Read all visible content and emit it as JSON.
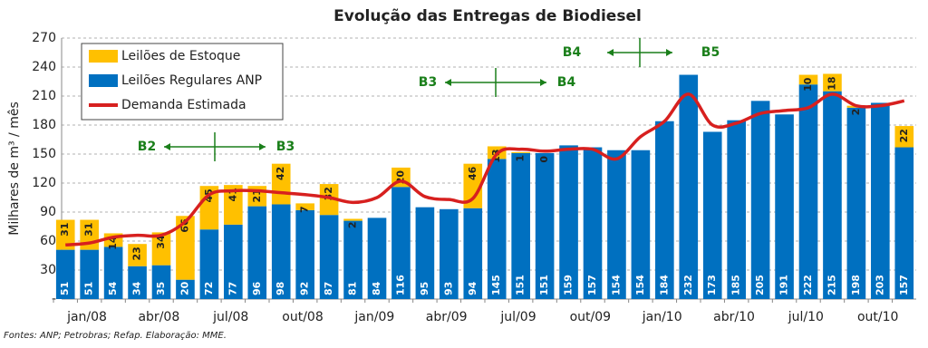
{
  "chart_data": {
    "type": "bar",
    "title": "Evolução das Entregas de Biodiesel",
    "y_label": "Milhares de m³ / mês",
    "source": "Fontes: ANP; Petrobras; Refap. Elaboração: MME.",
    "categories": [
      "jan/08",
      null,
      null,
      "abr/08",
      null,
      null,
      "jul/08",
      null,
      null,
      "out/08",
      null,
      null,
      "jan/09",
      null,
      null,
      "abr/09",
      null,
      null,
      "jul/09",
      null,
      null,
      "out/09",
      null,
      null,
      "jan/10",
      null,
      null,
      "abr/10",
      null,
      null,
      "jul/10",
      null,
      null,
      "out/10",
      null,
      null
    ],
    "series": [
      {
        "name": "Leilões de Estoque",
        "type": "bar",
        "color": "#ffc000",
        "values": [
          31,
          31,
          14,
          23,
          34,
          66,
          45,
          41,
          21,
          42,
          7,
          32,
          2,
          null,
          20,
          null,
          null,
          46,
          13,
          1,
          0,
          null,
          null,
          null,
          null,
          null,
          null,
          null,
          null,
          null,
          null,
          10,
          18,
          2,
          null,
          22
        ]
      },
      {
        "name": "Leilões Regulares ANP",
        "type": "bar",
        "color": "#0070c0",
        "values": [
          51,
          51,
          54,
          34,
          35,
          20,
          72,
          77,
          96,
          98,
          92,
          87,
          81,
          84,
          116,
          95,
          93,
          94,
          145,
          151,
          151,
          159,
          157,
          154,
          154,
          184,
          232,
          173,
          185,
          205,
          191,
          222,
          215,
          198,
          203,
          157
        ]
      },
      {
        "name": "Demanda Estimada",
        "type": "line",
        "color": "#d7201f",
        "values": [
          56,
          58,
          64,
          66,
          66,
          80,
          108,
          112,
          112,
          110,
          108,
          105,
          100,
          105,
          122,
          106,
          103,
          104,
          150,
          155,
          153,
          155,
          155,
          145,
          168,
          184,
          212,
          180,
          182,
          192,
          195,
          198,
          212,
          200,
          200,
          205
        ]
      }
    ],
    "ylim": [
      0,
      270
    ],
    "yticks": [
      {
        "value": 0,
        "label": "-"
      },
      30,
      60,
      90,
      120,
      150,
      180,
      210,
      240,
      270
    ],
    "grid": true,
    "legend": "top-left",
    "annotations": [
      {
        "left": "B2",
        "right": "B3"
      },
      {
        "left": "B3",
        "right": "B4"
      },
      {
        "left": "B4",
        "right": "B5"
      }
    ]
  }
}
